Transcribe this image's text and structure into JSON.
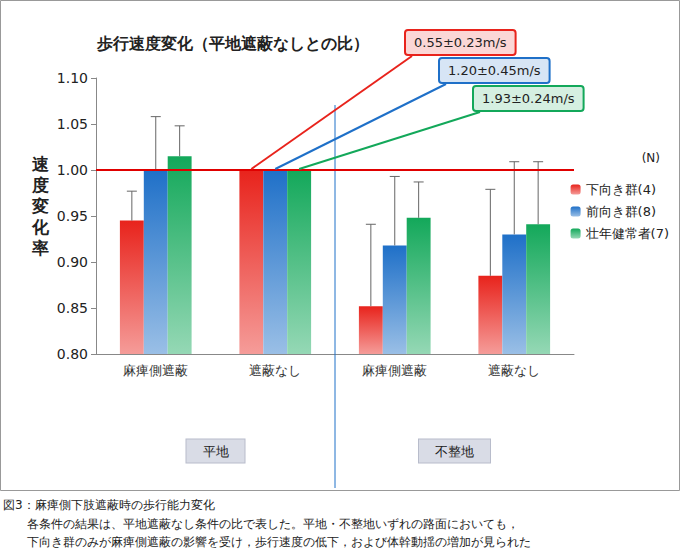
{
  "chart_data": {
    "type": "bar",
    "title": "歩行速度変化（平地遮蔽なしとの比）",
    "y_label": "速度変化率",
    "categories": [
      "麻痺側遮蔽",
      "遮蔽なし",
      "麻痺側遮蔽",
      "遮蔽なし"
    ],
    "groups": [
      {
        "label": "平地",
        "span": 2
      },
      {
        "label": "不整地",
        "span": 2
      }
    ],
    "series": [
      {
        "name": "下向き群(4)",
        "color": "#e8231c",
        "values": [
          0.945,
          1.0,
          0.852,
          0.885
        ],
        "errors": [
          0.032,
          0,
          0.089,
          0.094
        ]
      },
      {
        "name": "前向き群(8)",
        "color": "#1f70c8",
        "values": [
          1.0,
          1.0,
          0.918,
          0.93
        ],
        "errors": [
          0.058,
          0,
          0.075,
          0.079
        ]
      },
      {
        "name": "壮年健常者(7)",
        "color": "#13a85a",
        "values": [
          1.015,
          1.0,
          0.948,
          0.941
        ],
        "errors": [
          0.033,
          0,
          0.039,
          0.068
        ]
      }
    ],
    "ylim": [
      0.8,
      1.1
    ],
    "yticks": [
      {
        "value": 0.8,
        "label": "0.80"
      },
      {
        "value": 0.85,
        "label": "0.85"
      },
      {
        "value": 0.9,
        "label": "0.90"
      },
      {
        "value": 0.95,
        "label": "0.95"
      },
      {
        "value": 1.0,
        "label": "1.00"
      },
      {
        "value": 1.05,
        "label": "1.05"
      },
      {
        "value": 1.1,
        "label": "1.10"
      }
    ],
    "grid": false,
    "legend": "right",
    "legend_title": "(N)",
    "reference_line": 1.0,
    "annotations": [
      {
        "text": "0.55±0.23m/s",
        "series": "下向き群(4)",
        "category": 1
      },
      {
        "text": "1.20±0.45m/s",
        "series": "前向き群(8)",
        "category": 1
      },
      {
        "text": "1.93±0.24m/s",
        "series": "壮年健常者(7)",
        "category": 1
      }
    ],
    "caption": {
      "title": "図3：麻痺側下肢遮蔽時の歩行能力変化",
      "lines": [
        "各条件の結果は、平地遮蔽なし条件の比で表した。平地・不整地いずれの路面においても，",
        "下向き群のみが麻痺側遮蔽の影響を受け，歩行速度の低下，および体幹動揺の増加が見られた"
      ]
    }
  }
}
